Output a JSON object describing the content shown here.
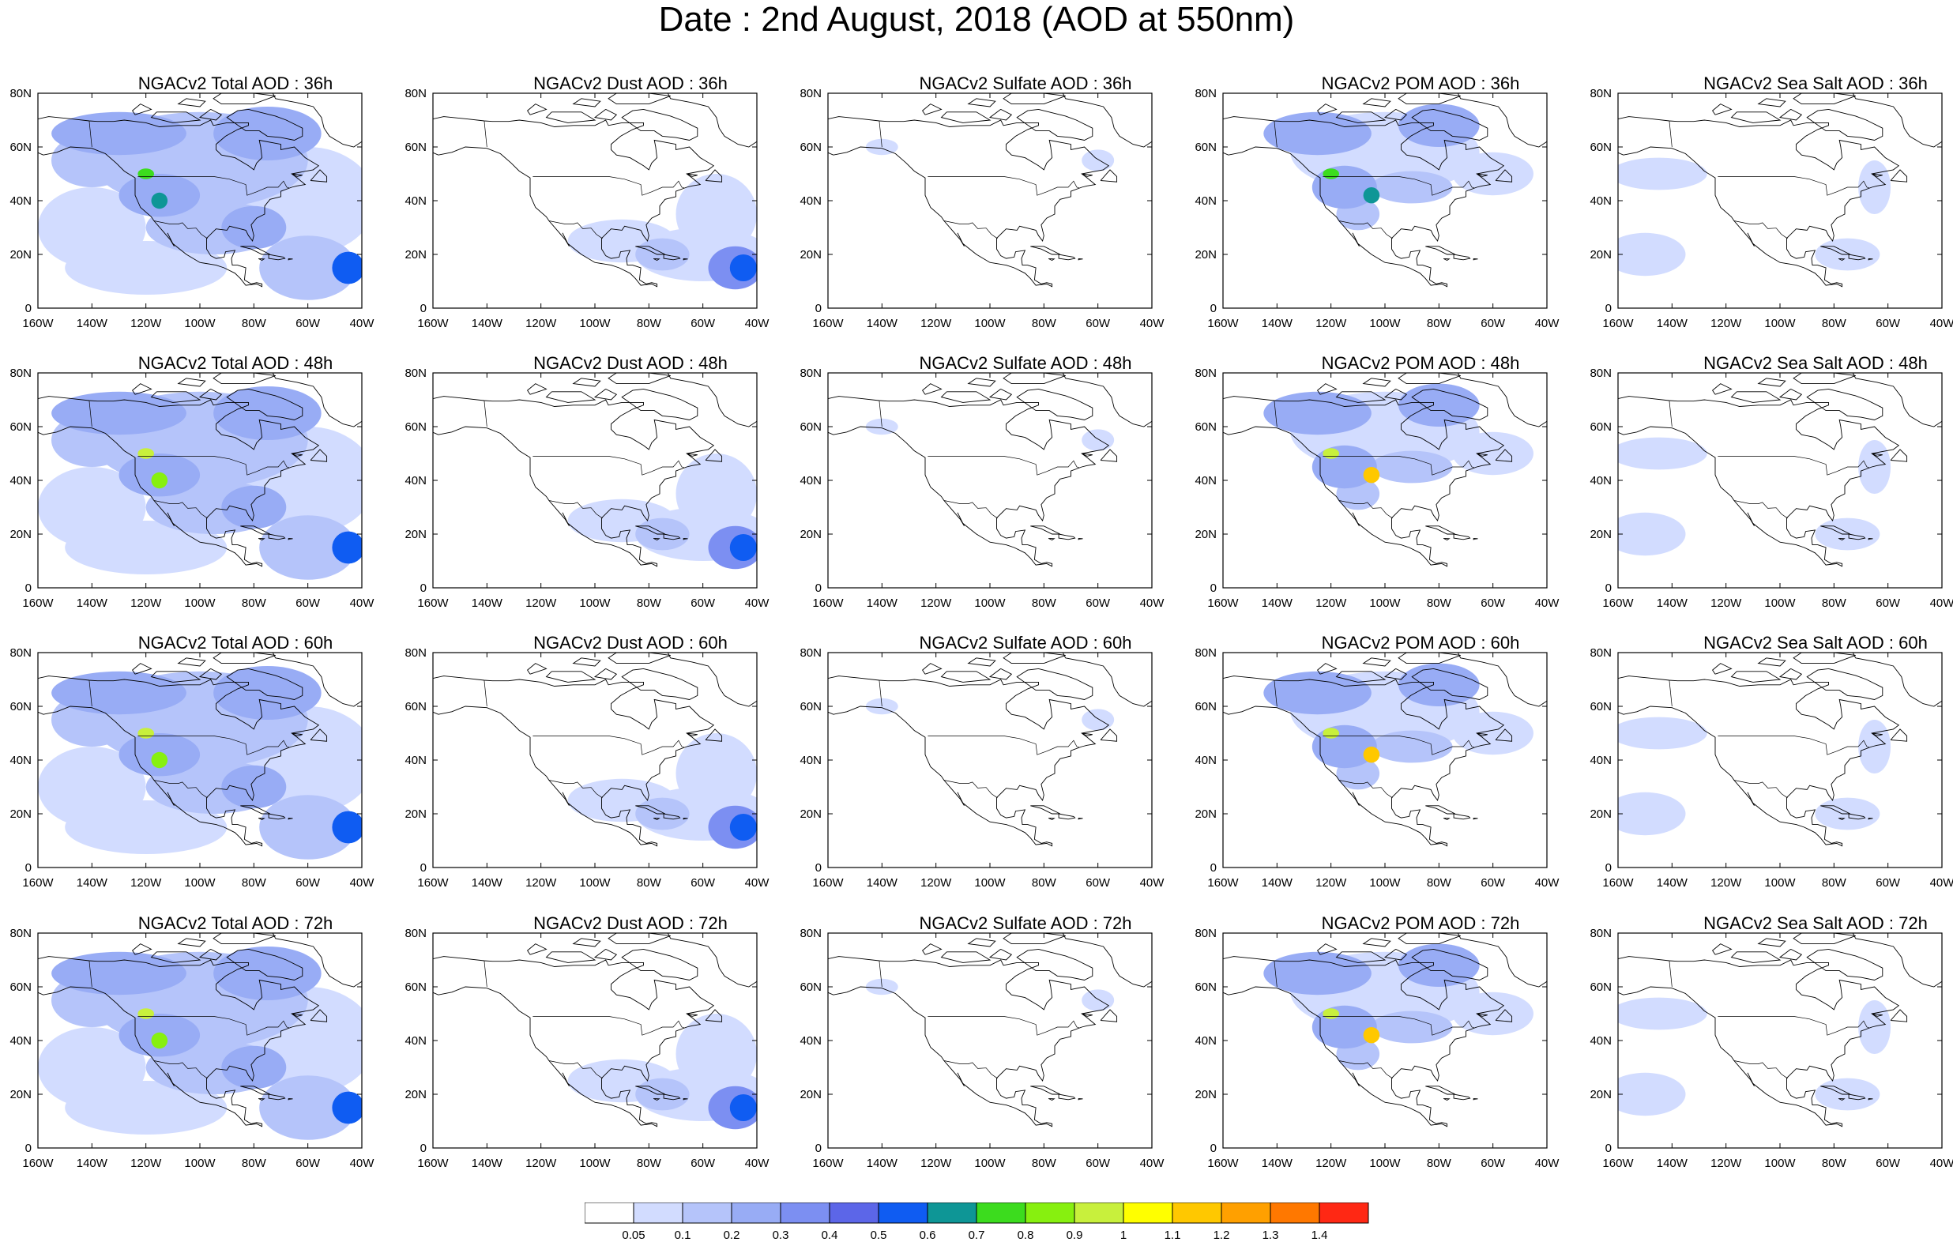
{
  "title": "Date : 2nd August, 2018 (AOD at 550nm)",
  "lon_labels": [
    "160W",
    "140W",
    "120W",
    "100W",
    "80W",
    "60W",
    "40W"
  ],
  "lat_labels": [
    "0",
    "20N",
    "40N",
    "60N",
    "80N"
  ],
  "panels": [
    [
      "NGACv2 Total AOD : 36h",
      "NGACv2 Dust AOD : 36h",
      "NGACv2 Sulfate AOD : 36h",
      "NGACv2 POM AOD : 36h",
      "NGACv2 Sea Salt AOD : 36h"
    ],
    [
      "NGACv2 Total AOD : 48h",
      "NGACv2 Dust AOD : 48h",
      "NGACv2 Sulfate AOD : 48h",
      "NGACv2 POM AOD : 48h",
      "NGACv2 Sea Salt AOD : 48h"
    ],
    [
      "NGACv2 Total AOD : 60h",
      "NGACv2 Dust AOD : 60h",
      "NGACv2 Sulfate AOD : 60h",
      "NGACv2 POM AOD : 60h",
      "NGACv2 Sea Salt AOD : 60h"
    ],
    [
      "NGACv2 Total AOD : 72h",
      "NGACv2 Dust AOD : 72h",
      "NGACv2 Sulfate AOD : 72h",
      "NGACv2 POM AOD : 72h",
      "NGACv2 Sea Salt  AOD : 72h"
    ]
  ],
  "colorbar": {
    "labels": [
      "0.05",
      "0.1",
      "0.2",
      "0.3",
      "0.4",
      "0.5",
      "0.6",
      "0.7",
      "0.8",
      "0.9",
      "1",
      "1.1",
      "1.2",
      "1.3",
      "1.4"
    ],
    "colors": [
      "#ffffff",
      "#d2dcff",
      "#b5c4fa",
      "#98acf5",
      "#7c8ff2",
      "#5c66e8",
      "#0f5cf2",
      "#0e9696",
      "#3cdc1e",
      "#87f00f",
      "#c8f03c",
      "#ffff00",
      "#ffc800",
      "#ffa000",
      "#ff7800",
      "#ff2814"
    ]
  }
}
